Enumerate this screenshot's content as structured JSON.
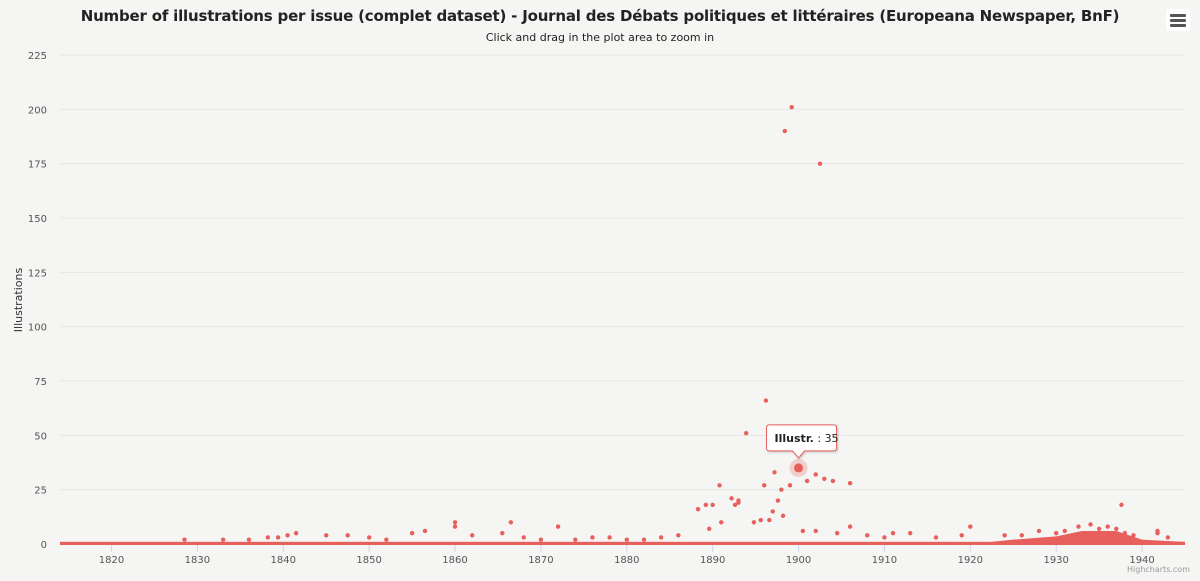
{
  "title": "Number of illustrations per issue (complet dataset) - Journal des Débats politiques et littéraires (Europeana Newspaper, BnF)",
  "subtitle": "Click and drag in the plot area to zoom in",
  "menu_icon": "hamburger-menu-icon",
  "credits": "Highcharts.com",
  "tooltip": {
    "label": "Illustr.",
    "separator": " : ",
    "value": "35"
  },
  "colors": {
    "series": "#e8605c",
    "grid": "#e6e6e6",
    "axis": "#ccd6eb"
  },
  "chart_data": {
    "type": "scatter",
    "ylabel": "Illustrations",
    "xlabel": "",
    "xlim": [
      1814,
      1945
    ],
    "ylim": [
      0,
      225
    ],
    "x_ticks": [
      1820,
      1830,
      1840,
      1850,
      1860,
      1870,
      1880,
      1890,
      1900,
      1910,
      1920,
      1930,
      1940
    ],
    "y_ticks": [
      0,
      25,
      50,
      75,
      100,
      125,
      150,
      175,
      200,
      225
    ],
    "grid": true,
    "legend": "none",
    "highlighted_point": {
      "x": 1900.0,
      "y": 35
    },
    "series": [
      {
        "points": [
          [
            1899.2,
            201
          ],
          [
            1898.4,
            190
          ],
          [
            1902.5,
            175
          ],
          [
            1896.2,
            66
          ],
          [
            1893.9,
            51
          ],
          [
            1902.0,
            32
          ],
          [
            1897.2,
            33
          ],
          [
            1903.0,
            30
          ],
          [
            1904.0,
            29
          ],
          [
            1901.0,
            29
          ],
          [
            1906.0,
            28
          ],
          [
            1898.0,
            25
          ],
          [
            1899.0,
            27
          ],
          [
            1896.0,
            27
          ],
          [
            1890.8,
            27
          ],
          [
            1892.2,
            21
          ],
          [
            1893.0,
            20
          ],
          [
            1893.0,
            19
          ],
          [
            1897.6,
            20
          ],
          [
            1892.6,
            18
          ],
          [
            1890.0,
            18
          ],
          [
            1889.2,
            18
          ],
          [
            1888.3,
            16
          ],
          [
            1897.0,
            15
          ],
          [
            1898.2,
            13
          ],
          [
            1896.6,
            11
          ],
          [
            1895.6,
            11
          ],
          [
            1894.8,
            10
          ],
          [
            1891.0,
            10
          ],
          [
            1889.6,
            7
          ],
          [
            1937.6,
            18
          ],
          [
            1860.0,
            10
          ],
          [
            1860.0,
            8
          ],
          [
            1866.5,
            10
          ],
          [
            1872.0,
            8
          ],
          [
            1920.0,
            8
          ],
          [
            1906.0,
            8
          ],
          [
            1934.0,
            9
          ],
          [
            1936.0,
            8
          ],
          [
            1937.0,
            7
          ],
          [
            1932.6,
            8
          ],
          [
            1941.8,
            6
          ],
          [
            1941.8,
            5
          ],
          [
            1928.0,
            6
          ],
          [
            1913.0,
            5
          ],
          [
            1911.0,
            5
          ],
          [
            1855.0,
            5
          ],
          [
            1856.5,
            6
          ],
          [
            1865.5,
            5
          ],
          [
            1841.5,
            5
          ],
          [
            1840.5,
            4
          ],
          [
            1847.5,
            4
          ],
          [
            1845.0,
            4
          ],
          [
            1838.2,
            3
          ],
          [
            1839.4,
            3
          ],
          [
            1862.0,
            4
          ],
          [
            1878.0,
            3
          ],
          [
            1884.0,
            3
          ],
          [
            1886.0,
            4
          ],
          [
            1880.0,
            2
          ],
          [
            1916.0,
            3
          ],
          [
            1919.0,
            4
          ],
          [
            1924.0,
            4
          ],
          [
            1926.0,
            4
          ],
          [
            1930.0,
            5
          ],
          [
            1931.0,
            6
          ],
          [
            1935.0,
            7
          ],
          [
            1938.0,
            5
          ],
          [
            1939.0,
            4
          ],
          [
            1943.0,
            3
          ],
          [
            1908.0,
            4
          ],
          [
            1910.0,
            3
          ],
          [
            1904.5,
            5
          ],
          [
            1902.0,
            6
          ],
          [
            1900.5,
            6
          ],
          [
            1833.0,
            2
          ],
          [
            1836.0,
            2
          ],
          [
            1828.5,
            2
          ],
          [
            1850.0,
            3
          ],
          [
            1852.0,
            2
          ],
          [
            1868.0,
            3
          ],
          [
            1870.0,
            2
          ],
          [
            1874.0,
            2
          ],
          [
            1876.0,
            3
          ],
          [
            1882.0,
            2
          ]
        ]
      }
    ]
  }
}
